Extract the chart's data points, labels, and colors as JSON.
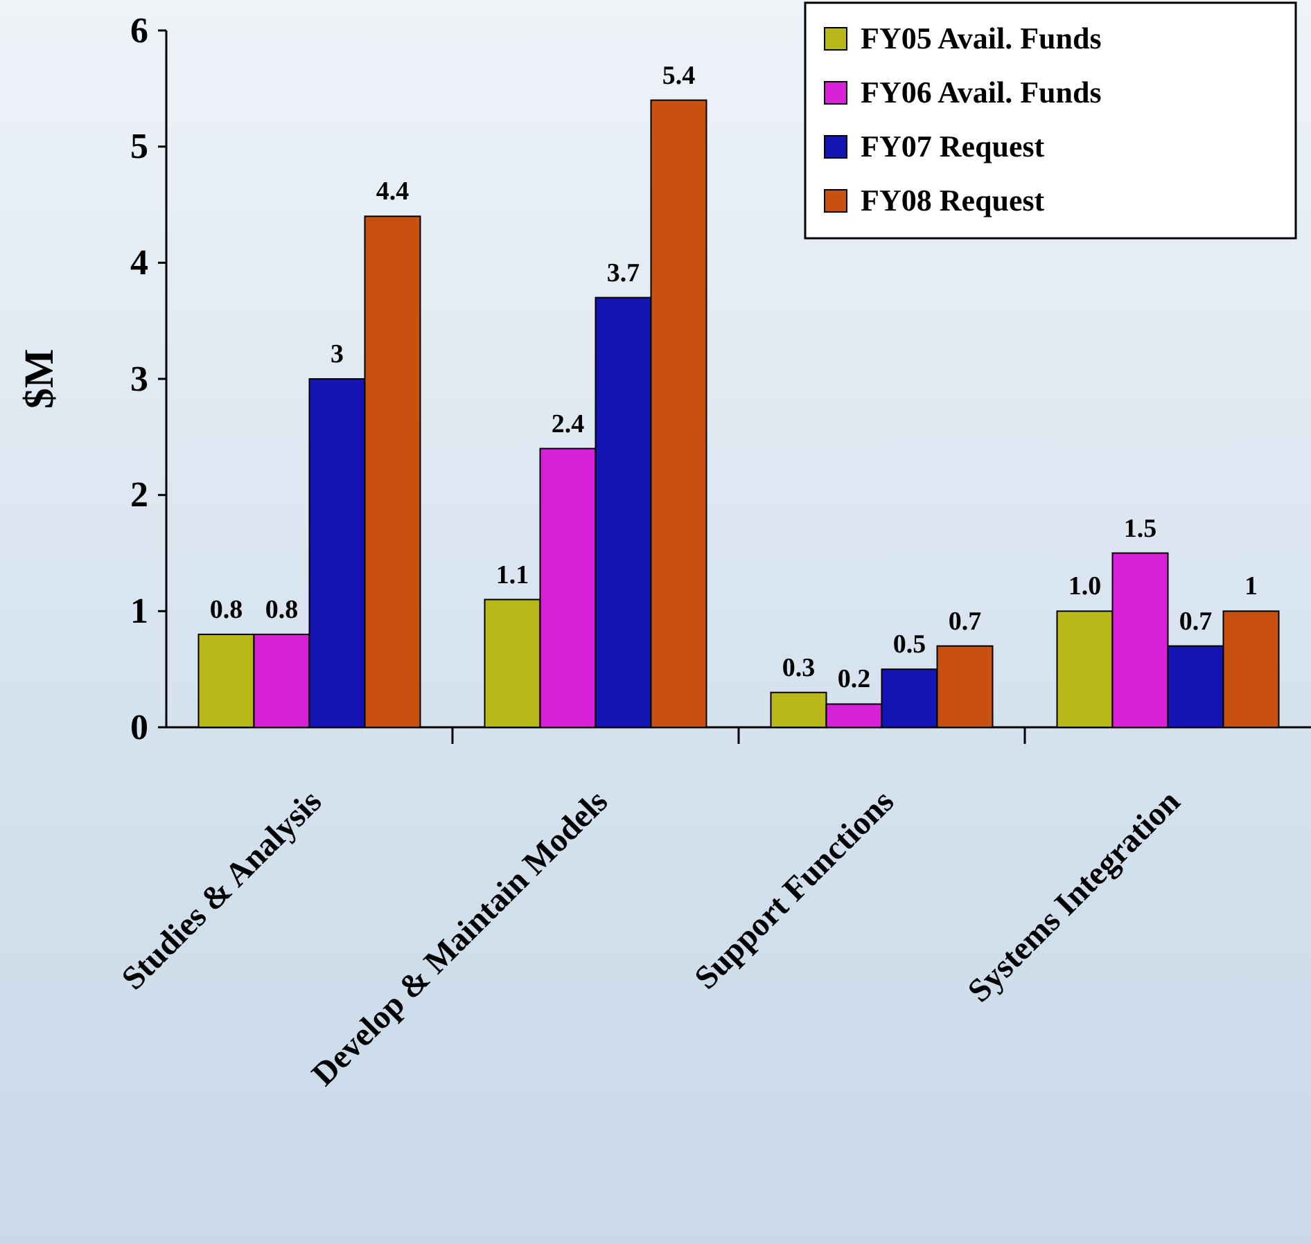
{
  "chart_data": {
    "type": "bar",
    "ylabel": "$M",
    "categories": [
      "Studies & Analysis",
      "Develop & Maintain Models",
      "Support Functions",
      "Systems Integration"
    ],
    "series": [
      {
        "name": "FY05 Avail. Funds",
        "color": "#b8b818",
        "values": [
          0.8,
          1.1,
          0.3,
          1.0
        ],
        "value_labels": [
          "0.8",
          "1.1",
          "0.3",
          "1.0"
        ]
      },
      {
        "name": "FY06 Avail. Funds",
        "color": "#d820d8",
        "values": [
          0.8,
          2.4,
          0.2,
          1.5
        ],
        "value_labels": [
          "0.8",
          "2.4",
          "0.2",
          "1.5"
        ]
      },
      {
        "name": "FY07 Request",
        "color": "#1414b4",
        "values": [
          3,
          3.7,
          0.5,
          0.7
        ],
        "value_labels": [
          "3",
          "3.7",
          "0.5",
          "0.7"
        ]
      },
      {
        "name": "FY08 Request",
        "color": "#c85010",
        "values": [
          4.4,
          5.4,
          0.7,
          1
        ],
        "value_labels": [
          "4.4",
          "5.4",
          "0.7",
          "1"
        ]
      }
    ],
    "ylim": [
      0,
      6
    ],
    "yticks": [
      0,
      1,
      2,
      3,
      4,
      5,
      6
    ],
    "grid": false,
    "legend": "top right"
  }
}
